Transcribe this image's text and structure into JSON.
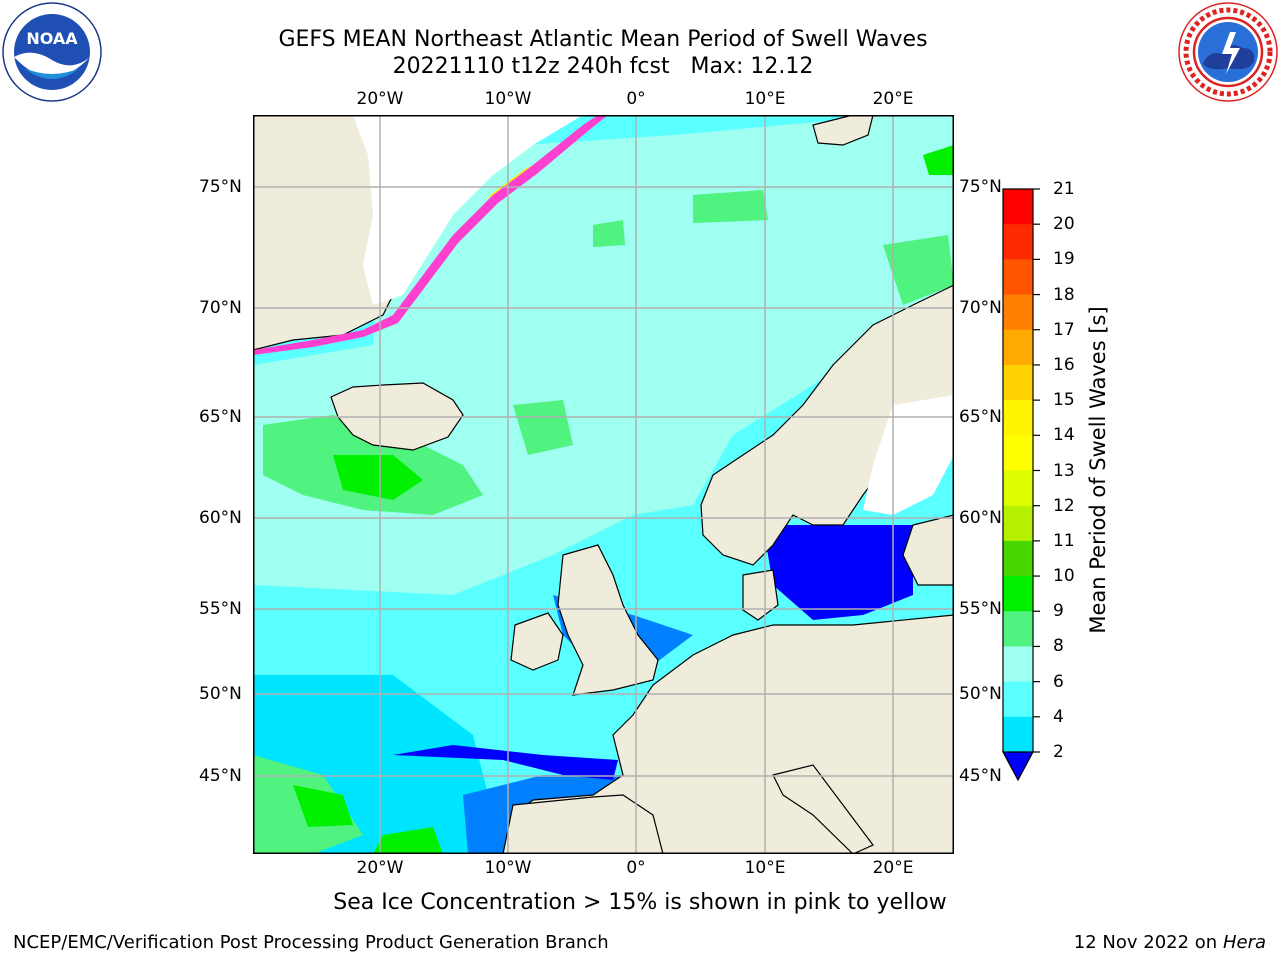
{
  "title": {
    "line1": "GEFS MEAN Northeast Atlantic Mean Period of Swell Waves",
    "line2": "20221110 t12z 240h fcst   Max: 12.12"
  },
  "logos": {
    "left": {
      "name": "NOAA",
      "text": "NOAA",
      "ring_text": "NATIONAL OCEANIC AND ATMOSPHERIC ADMINISTRATION · U.S. DEPARTMENT OF COMMERCE"
    },
    "right": {
      "name": "National Weather Service",
      "ring_text": "NATIONAL WEATHER SERVICE"
    }
  },
  "map": {
    "lon_ticks_top": [
      "20°W",
      "10°W",
      "0°",
      "10°E",
      "20°E"
    ],
    "lon_ticks_bottom": [
      "20°W",
      "10°W",
      "0°",
      "10°E",
      "20°E"
    ],
    "lat_ticks_left": [
      "75°N",
      "70°N",
      "65°N",
      "60°N",
      "55°N",
      "50°N",
      "45°N"
    ],
    "lat_ticks_right": [
      "75°N",
      "70°N",
      "65°N",
      "60°N",
      "55°N",
      "50°N",
      "45°N"
    ],
    "colors": {
      "land": "#efecdc",
      "coast": "#000000",
      "grid": "#b0b0b0",
      "ice_pink": "#ff3fd0",
      "ice_yellow": "#ffe800"
    }
  },
  "colorbar": {
    "title": "Mean Period of Swell Waves [s]",
    "labels": [
      "21",
      "20",
      "19",
      "18",
      "17",
      "16",
      "15",
      "14",
      "13",
      "12",
      "11",
      "10",
      "9",
      "8",
      "6",
      "4",
      "2"
    ],
    "colors": [
      "#ff0000",
      "#ff2a00",
      "#ff5500",
      "#ff8000",
      "#ffaa00",
      "#ffd200",
      "#fff500",
      "#ffff00",
      "#ddff00",
      "#b4f000",
      "#48d800",
      "#00f000",
      "#50f280",
      "#9ffff0",
      "#5affff",
      "#00e5ff",
      "#0080ff"
    ],
    "extend_color": "#0000ff"
  },
  "ice_note": "Sea Ice Concentration > 15% is shown in pink to yellow",
  "footer": {
    "left": "NCEP/EMC/Verification Post Processing Product Generation Branch",
    "date": "12 Nov 2022 on",
    "host": "Hera"
  }
}
